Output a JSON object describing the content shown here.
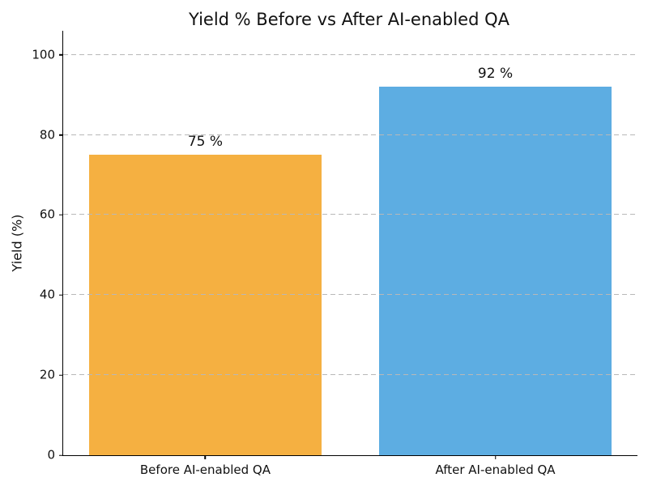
{
  "chart_data": {
    "type": "bar",
    "title": "Yield % Before vs After AI-enabled QA",
    "xlabel": "",
    "ylabel": "Yield (%)",
    "categories": [
      "Before AI-enabled QA",
      "After AI-enabled QA"
    ],
    "values": [
      75,
      92
    ],
    "value_labels": [
      "75 %",
      "92 %"
    ],
    "bar_colors": [
      "#F5B041",
      "#5DADE2"
    ],
    "yticks": [
      0,
      20,
      40,
      60,
      80,
      100
    ],
    "ylim": [
      0,
      106
    ],
    "xlim": [
      -0.49,
      1.49
    ],
    "bar_width": 0.8,
    "grid": {
      "axis": "y",
      "style": "dashed",
      "color": "#b8b8b8",
      "over_bars": true
    },
    "legend": "none",
    "background_color": "#ffffff",
    "text_color": "#111111"
  }
}
